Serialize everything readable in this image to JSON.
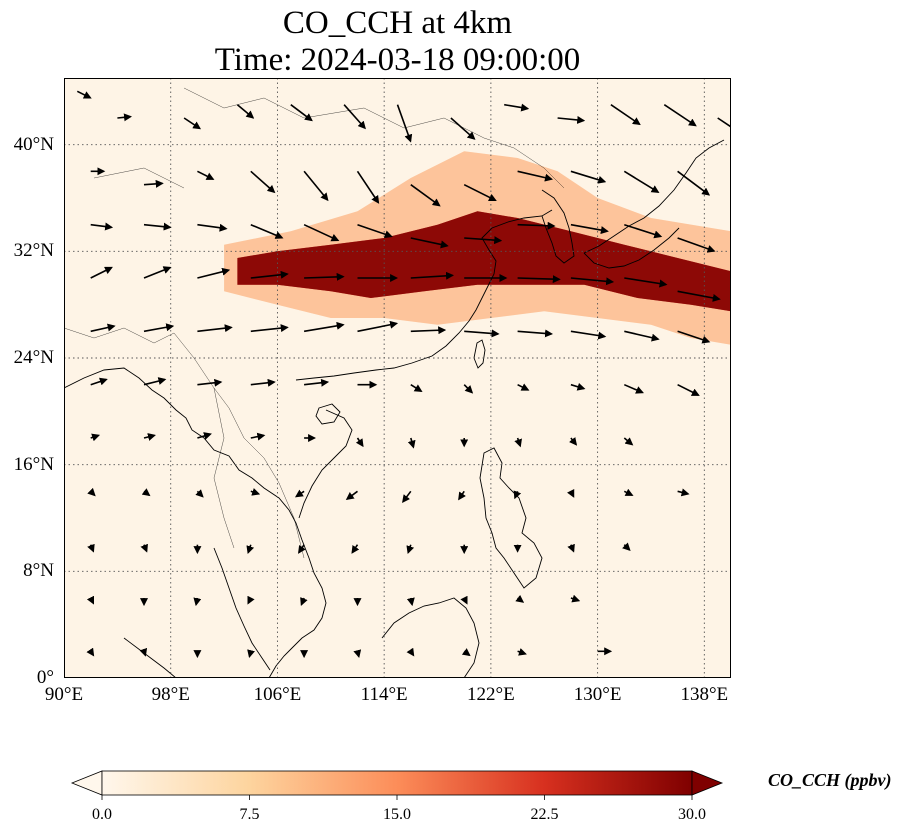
{
  "title": {
    "line1": "CO_CCH at 4km",
    "line2": "Time: 2024-03-18 09:00:00"
  },
  "map": {
    "extent": {
      "lon_min": 90,
      "lon_max": 140,
      "lat_min": 0,
      "lat_max": 45
    },
    "lon_ticks": [
      {
        "value": 90,
        "label": "90°E"
      },
      {
        "value": 98,
        "label": "98°E"
      },
      {
        "value": 106,
        "label": "106°E"
      },
      {
        "value": 114,
        "label": "114°E"
      },
      {
        "value": 122,
        "label": "122°E"
      },
      {
        "value": 130,
        "label": "130°E"
      },
      {
        "value": 138,
        "label": "138°E"
      }
    ],
    "lat_ticks": [
      {
        "value": 0,
        "label": "0°"
      },
      {
        "value": 8,
        "label": "8°N"
      },
      {
        "value": 16,
        "label": "16°N"
      },
      {
        "value": 24,
        "label": "24°N"
      },
      {
        "value": 32,
        "label": "32°N"
      },
      {
        "value": 40,
        "label": "40°N"
      }
    ],
    "gridlines": true,
    "field_background": "#fef4e6",
    "high_color": "#7f0000",
    "plume_core": [
      [
        103,
        31.5
      ],
      [
        106,
        32.0
      ],
      [
        110,
        32.5
      ],
      [
        114,
        33.0
      ],
      [
        118,
        34.0
      ],
      [
        121,
        35.0
      ],
      [
        124,
        34.5
      ],
      [
        128,
        33.5
      ],
      [
        132,
        32.5
      ],
      [
        136,
        31.5
      ],
      [
        140,
        30.5
      ],
      [
        140,
        27.5
      ],
      [
        137,
        28.0
      ],
      [
        133,
        28.5
      ],
      [
        129,
        29.5
      ],
      [
        125,
        29.5
      ],
      [
        121,
        29.5
      ],
      [
        117,
        29.0
      ],
      [
        113,
        28.5
      ],
      [
        110,
        29.0
      ],
      [
        106,
        29.5
      ],
      [
        103,
        29.5
      ]
    ],
    "plume_fringe": [
      [
        102,
        32.5
      ],
      [
        107,
        33.5
      ],
      [
        112,
        35.0
      ],
      [
        116,
        37.5
      ],
      [
        120,
        39.5
      ],
      [
        124,
        39.0
      ],
      [
        127,
        38.0
      ],
      [
        130,
        36.0
      ],
      [
        134,
        34.5
      ],
      [
        140,
        33.5
      ],
      [
        140,
        25.0
      ],
      [
        137,
        25.5
      ],
      [
        134,
        26.5
      ],
      [
        130,
        27.0
      ],
      [
        126,
        27.5
      ],
      [
        122,
        27.0
      ],
      [
        118,
        26.5
      ],
      [
        114,
        27.0
      ],
      [
        110,
        27.0
      ],
      [
        106,
        28.0
      ],
      [
        102,
        29.0
      ]
    ],
    "wind_vectors": [
      {
        "lon": 91,
        "lat": 44,
        "u": 1.0,
        "v": -0.5
      },
      {
        "lon": 94,
        "lat": 42,
        "u": 1.0,
        "v": 0.1
      },
      {
        "lon": 99,
        "lat": 42,
        "u": 1.2,
        "v": -0.8
      },
      {
        "lon": 103,
        "lat": 43,
        "u": 1.2,
        "v": -1.0
      },
      {
        "lon": 107,
        "lat": 43,
        "u": 1.6,
        "v": -1.2
      },
      {
        "lon": 111,
        "lat": 43,
        "u": 1.6,
        "v": -1.8
      },
      {
        "lon": 115,
        "lat": 43,
        "u": 1.0,
        "v": -2.8
      },
      {
        "lon": 119,
        "lat": 42,
        "u": 1.8,
        "v": -1.6
      },
      {
        "lon": 123,
        "lat": 43,
        "u": 1.8,
        "v": -0.3
      },
      {
        "lon": 127,
        "lat": 42,
        "u": 2.0,
        "v": -0.2
      },
      {
        "lon": 131,
        "lat": 43,
        "u": 2.2,
        "v": -1.5
      },
      {
        "lon": 135,
        "lat": 43,
        "u": 2.4,
        "v": -1.6
      },
      {
        "lon": 139,
        "lat": 42,
        "u": 1.8,
        "v": -1.2
      },
      {
        "lon": 92,
        "lat": 38,
        "u": 1.0,
        "v": 0.0
      },
      {
        "lon": 96,
        "lat": 37,
        "u": 1.4,
        "v": 0.1
      },
      {
        "lon": 100,
        "lat": 38,
        "u": 1.2,
        "v": -0.6
      },
      {
        "lon": 104,
        "lat": 38,
        "u": 1.8,
        "v": -1.6
      },
      {
        "lon": 108,
        "lat": 38,
        "u": 1.8,
        "v": -2.2
      },
      {
        "lon": 112,
        "lat": 38,
        "u": 1.6,
        "v": -2.4
      },
      {
        "lon": 116,
        "lat": 37,
        "u": 2.2,
        "v": -1.6
      },
      {
        "lon": 120,
        "lat": 37,
        "u": 2.4,
        "v": -1.2
      },
      {
        "lon": 124,
        "lat": 38,
        "u": 2.6,
        "v": -0.6
      },
      {
        "lon": 128,
        "lat": 38,
        "u": 2.6,
        "v": -0.8
      },
      {
        "lon": 132,
        "lat": 38,
        "u": 2.6,
        "v": -1.6
      },
      {
        "lon": 136,
        "lat": 38,
        "u": 2.4,
        "v": -1.8
      },
      {
        "lon": 92,
        "lat": 34,
        "u": 1.6,
        "v": -0.2
      },
      {
        "lon": 96,
        "lat": 34,
        "u": 2.0,
        "v": -0.2
      },
      {
        "lon": 100,
        "lat": 34,
        "u": 2.2,
        "v": -0.3
      },
      {
        "lon": 104,
        "lat": 34,
        "u": 2.4,
        "v": -1.0
      },
      {
        "lon": 108,
        "lat": 34,
        "u": 2.6,
        "v": -1.2
      },
      {
        "lon": 112,
        "lat": 34,
        "u": 2.6,
        "v": -0.9
      },
      {
        "lon": 116,
        "lat": 33,
        "u": 2.8,
        "v": -0.6
      },
      {
        "lon": 120,
        "lat": 33,
        "u": 2.8,
        "v": -0.2
      },
      {
        "lon": 124,
        "lat": 34,
        "u": 2.8,
        "v": -0.1
      },
      {
        "lon": 128,
        "lat": 34,
        "u": 2.8,
        "v": -0.5
      },
      {
        "lon": 132,
        "lat": 34,
        "u": 2.8,
        "v": -0.9
      },
      {
        "lon": 136,
        "lat": 33,
        "u": 2.8,
        "v": -1.0
      },
      {
        "lon": 92,
        "lat": 30,
        "u": 1.6,
        "v": 0.8
      },
      {
        "lon": 96,
        "lat": 30,
        "u": 2.0,
        "v": 0.8
      },
      {
        "lon": 100,
        "lat": 30,
        "u": 2.4,
        "v": 0.6
      },
      {
        "lon": 104,
        "lat": 30,
        "u": 2.8,
        "v": 0.3
      },
      {
        "lon": 108,
        "lat": 30,
        "u": 3.0,
        "v": 0.1
      },
      {
        "lon": 112,
        "lat": 30,
        "u": 3.0,
        "v": 0.0
      },
      {
        "lon": 116,
        "lat": 30,
        "u": 3.2,
        "v": 0.2
      },
      {
        "lon": 120,
        "lat": 30,
        "u": 3.2,
        "v": 0.0
      },
      {
        "lon": 124,
        "lat": 30,
        "u": 3.2,
        "v": -0.1
      },
      {
        "lon": 128,
        "lat": 30,
        "u": 3.2,
        "v": -0.3
      },
      {
        "lon": 132,
        "lat": 30,
        "u": 3.2,
        "v": -0.5
      },
      {
        "lon": 136,
        "lat": 29,
        "u": 3.2,
        "v": -0.6
      },
      {
        "lon": 92,
        "lat": 26,
        "u": 1.8,
        "v": 0.4
      },
      {
        "lon": 96,
        "lat": 26,
        "u": 2.2,
        "v": 0.4
      },
      {
        "lon": 100,
        "lat": 26,
        "u": 2.6,
        "v": 0.3
      },
      {
        "lon": 104,
        "lat": 26,
        "u": 2.8,
        "v": 0.3
      },
      {
        "lon": 108,
        "lat": 26,
        "u": 3.0,
        "v": 0.5
      },
      {
        "lon": 112,
        "lat": 26,
        "u": 3.0,
        "v": 0.6
      },
      {
        "lon": 116,
        "lat": 26,
        "u": 2.6,
        "v": 0.1
      },
      {
        "lon": 120,
        "lat": 26,
        "u": 2.6,
        "v": -0.2
      },
      {
        "lon": 124,
        "lat": 26,
        "u": 2.6,
        "v": -0.2
      },
      {
        "lon": 128,
        "lat": 26,
        "u": 2.6,
        "v": -0.4
      },
      {
        "lon": 132,
        "lat": 26,
        "u": 2.6,
        "v": -0.6
      },
      {
        "lon": 136,
        "lat": 26,
        "u": 2.4,
        "v": -0.8
      },
      {
        "lon": 92,
        "lat": 22,
        "u": 1.2,
        "v": 0.4
      },
      {
        "lon": 96,
        "lat": 22,
        "u": 1.6,
        "v": 0.4
      },
      {
        "lon": 100,
        "lat": 22,
        "u": 1.8,
        "v": 0.2
      },
      {
        "lon": 104,
        "lat": 22,
        "u": 1.8,
        "v": 0.2
      },
      {
        "lon": 108,
        "lat": 22,
        "u": 1.8,
        "v": 0.2
      },
      {
        "lon": 112,
        "lat": 22,
        "u": 1.4,
        "v": 0.0
      },
      {
        "lon": 116,
        "lat": 22,
        "u": 0.8,
        "v": -0.5
      },
      {
        "lon": 120,
        "lat": 22,
        "u": 0.6,
        "v": -0.6
      },
      {
        "lon": 124,
        "lat": 22,
        "u": 0.8,
        "v": -0.4
      },
      {
        "lon": 128,
        "lat": 22,
        "u": 1.0,
        "v": -0.3
      },
      {
        "lon": 132,
        "lat": 22,
        "u": 1.4,
        "v": -0.6
      },
      {
        "lon": 136,
        "lat": 22,
        "u": 1.6,
        "v": -0.8
      },
      {
        "lon": 92,
        "lat": 18,
        "u": 0.6,
        "v": 0.2
      },
      {
        "lon": 96,
        "lat": 18,
        "u": 0.8,
        "v": 0.2
      },
      {
        "lon": 100,
        "lat": 18,
        "u": 1.0,
        "v": 0.3
      },
      {
        "lon": 104,
        "lat": 18,
        "u": 1.0,
        "v": 0.2
      },
      {
        "lon": 108,
        "lat": 18,
        "u": 0.8,
        "v": 0.0
      },
      {
        "lon": 112,
        "lat": 18,
        "u": 0.4,
        "v": -0.6
      },
      {
        "lon": 116,
        "lat": 18,
        "u": 0.2,
        "v": -0.7
      },
      {
        "lon": 120,
        "lat": 18,
        "u": 0.0,
        "v": -0.6
      },
      {
        "lon": 124,
        "lat": 18,
        "u": 0.2,
        "v": -0.6
      },
      {
        "lon": 128,
        "lat": 18,
        "u": 0.4,
        "v": -0.5
      },
      {
        "lon": 132,
        "lat": 18,
        "u": 0.6,
        "v": -0.5
      },
      {
        "lon": 92,
        "lat": 14,
        "u": 0.3,
        "v": -0.3
      },
      {
        "lon": 96,
        "lat": 14,
        "u": 0.4,
        "v": -0.3
      },
      {
        "lon": 100,
        "lat": 14,
        "u": 0.4,
        "v": -0.4
      },
      {
        "lon": 104,
        "lat": 14,
        "u": 0.6,
        "v": -0.2
      },
      {
        "lon": 108,
        "lat": 14,
        "u": -0.6,
        "v": -0.4
      },
      {
        "lon": 112,
        "lat": 14,
        "u": -0.8,
        "v": -0.6
      },
      {
        "lon": 116,
        "lat": 14,
        "u": -0.6,
        "v": -0.8
      },
      {
        "lon": 120,
        "lat": 14,
        "u": -0.4,
        "v": -0.6
      },
      {
        "lon": 124,
        "lat": 14,
        "u": -0.2,
        "v": -0.5
      },
      {
        "lon": 128,
        "lat": 14,
        "u": 0.2,
        "v": -0.4
      },
      {
        "lon": 132,
        "lat": 14,
        "u": 0.6,
        "v": -0.3
      },
      {
        "lon": 136,
        "lat": 14,
        "u": 0.8,
        "v": -0.2
      },
      {
        "lon": 92,
        "lat": 10,
        "u": 0.2,
        "v": -0.5
      },
      {
        "lon": 96,
        "lat": 10,
        "u": 0.2,
        "v": -0.5
      },
      {
        "lon": 100,
        "lat": 10,
        "u": 0.0,
        "v": -0.6
      },
      {
        "lon": 104,
        "lat": 10,
        "u": -0.2,
        "v": -0.6
      },
      {
        "lon": 108,
        "lat": 10,
        "u": -0.4,
        "v": -0.6
      },
      {
        "lon": 112,
        "lat": 10,
        "u": -0.4,
        "v": -0.6
      },
      {
        "lon": 116,
        "lat": 10,
        "u": -0.2,
        "v": -0.6
      },
      {
        "lon": 120,
        "lat": 10,
        "u": 0.0,
        "v": -0.6
      },
      {
        "lon": 124,
        "lat": 10,
        "u": 0.0,
        "v": -0.5
      },
      {
        "lon": 128,
        "lat": 10,
        "u": 0.2,
        "v": -0.5
      },
      {
        "lon": 132,
        "lat": 10,
        "u": 0.4,
        "v": -0.4
      },
      {
        "lon": 92,
        "lat": 6,
        "u": 0.2,
        "v": -0.4
      },
      {
        "lon": 96,
        "lat": 6,
        "u": 0.0,
        "v": -0.5
      },
      {
        "lon": 100,
        "lat": 6,
        "u": -0.1,
        "v": -0.5
      },
      {
        "lon": 104,
        "lat": 6,
        "u": -0.2,
        "v": -0.4
      },
      {
        "lon": 108,
        "lat": 6,
        "u": -0.2,
        "v": -0.5
      },
      {
        "lon": 112,
        "lat": 6,
        "u": 0.0,
        "v": -0.5
      },
      {
        "lon": 116,
        "lat": 6,
        "u": 0.1,
        "v": -0.5
      },
      {
        "lon": 120,
        "lat": 6,
        "u": 0.2,
        "v": -0.4
      },
      {
        "lon": 124,
        "lat": 6,
        "u": 0.4,
        "v": -0.3
      },
      {
        "lon": 128,
        "lat": 6,
        "u": 0.6,
        "v": -0.2
      },
      {
        "lon": 92,
        "lat": 2,
        "u": 0.2,
        "v": -0.3
      },
      {
        "lon": 96,
        "lat": 2,
        "u": 0.1,
        "v": -0.3
      },
      {
        "lon": 100,
        "lat": 2,
        "u": 0.0,
        "v": -0.4
      },
      {
        "lon": 104,
        "lat": 2,
        "u": -0.1,
        "v": -0.4
      },
      {
        "lon": 108,
        "lat": 2,
        "u": 0.0,
        "v": -0.4
      },
      {
        "lon": 112,
        "lat": 2,
        "u": 0.1,
        "v": -0.4
      },
      {
        "lon": 116,
        "lat": 2,
        "u": 0.2,
        "v": -0.3
      },
      {
        "lon": 120,
        "lat": 2,
        "u": 0.4,
        "v": -0.3
      },
      {
        "lon": 124,
        "lat": 2,
        "u": 0.6,
        "v": -0.2
      },
      {
        "lon": 130,
        "lat": 2,
        "u": 1.0,
        "v": 0.0
      }
    ]
  },
  "colorbar": {
    "label": "CO_CCH (ppbv)",
    "min": 0.0,
    "max": 30.0,
    "ticks": [
      {
        "value": 0,
        "label": "0.0"
      },
      {
        "value": 7.5,
        "label": "7.5"
      },
      {
        "value": 15,
        "label": "15.0"
      },
      {
        "value": 22.5,
        "label": "22.5"
      },
      {
        "value": 30,
        "label": "30.0"
      }
    ],
    "colors": [
      "#fff7ec",
      "#fdd49e",
      "#fc8d59",
      "#d7301f",
      "#7f0000"
    ]
  }
}
